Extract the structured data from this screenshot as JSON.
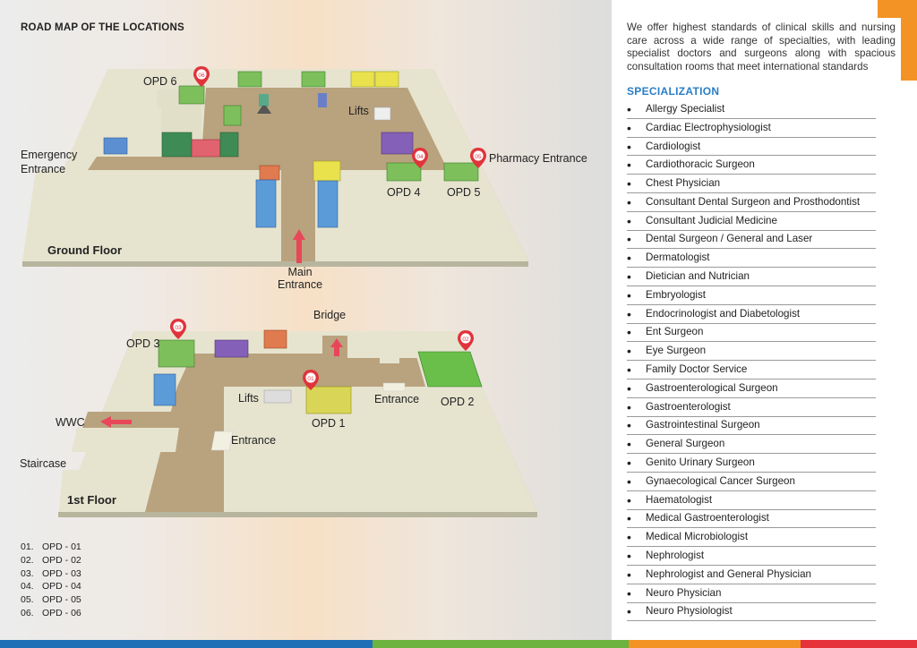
{
  "map": {
    "title": "ROAD MAP OF THE LOCATIONS",
    "ground_floor": {
      "name": "Ground Floor",
      "labels": {
        "opd6": "OPD 6",
        "lifts": "Lifts",
        "emergency": "Emergency\nEntrance",
        "pharmacy": "Pharmacy Entrance",
        "opd4": "OPD 4",
        "opd5": "OPD 5",
        "main_entrance": "Main\nEntrance"
      },
      "pins": [
        "06",
        "04",
        "05"
      ]
    },
    "first_floor": {
      "name": "1st Floor",
      "labels": {
        "bridge": "Bridge",
        "opd3": "OPD 3",
        "lifts": "Lifts",
        "entrance_right": "Entrance",
        "opd2": "OPD 2",
        "opd1": "OPD 1",
        "wwc": "WWC",
        "entrance_left": "Entrance",
        "staircase": "Staircase"
      },
      "pins": [
        "03",
        "01",
        "02"
      ]
    },
    "legend": [
      {
        "num": "01.",
        "text": "OPD - 01"
      },
      {
        "num": "02.",
        "text": "OPD - 02"
      },
      {
        "num": "03.",
        "text": "OPD - 03"
      },
      {
        "num": "04.",
        "text": "OPD - 04"
      },
      {
        "num": "05.",
        "text": "OPD - 05"
      },
      {
        "num": "06.",
        "text": "OPD - 06"
      }
    ]
  },
  "intro": "We offer highest standards of clinical skills and nursing care across a wide range of specialties, with leading specialist doctors and surgeons along with spacious consultation rooms that meet international standards",
  "specialization": {
    "title": "SPECIALIZATION",
    "items": [
      "Allergy Specialist",
      "Cardiac Electrophysiologist",
      "Cardiologist",
      "Cardiothoracic Surgeon",
      "Chest Physician",
      "Consultant Dental Surgeon and Prosthodontist",
      "Consultant Judicial Medicine",
      "Dental Surgeon / General and Laser",
      "Dermatologist",
      "Dietician and Nutrician",
      "Embryologist",
      "Endocrinologist and Diabetologist",
      "Ent Surgeon",
      "Eye Surgeon",
      "Family Doctor Service",
      "Gastroenterological Surgeon",
      "Gastroenterologist",
      "Gastrointestinal Surgeon",
      "General Surgeon",
      "Genito Urinary Surgeon",
      "Gynaecological Cancer Surgeon",
      "Haematologist",
      "Medical Gastroenterologist",
      "Medical Microbiologist",
      "Nephrologist",
      "Nephrologist and General Physician",
      "Neuro Physician",
      "Neuro Physiologist"
    ]
  },
  "colors": {
    "accent_blue": "#2a7ec4",
    "accent_orange": "#f39325",
    "pin_red": "#e0333b",
    "bar": [
      "#1f6fb7",
      "#6cb33f",
      "#f39325",
      "#e5323b"
    ]
  }
}
